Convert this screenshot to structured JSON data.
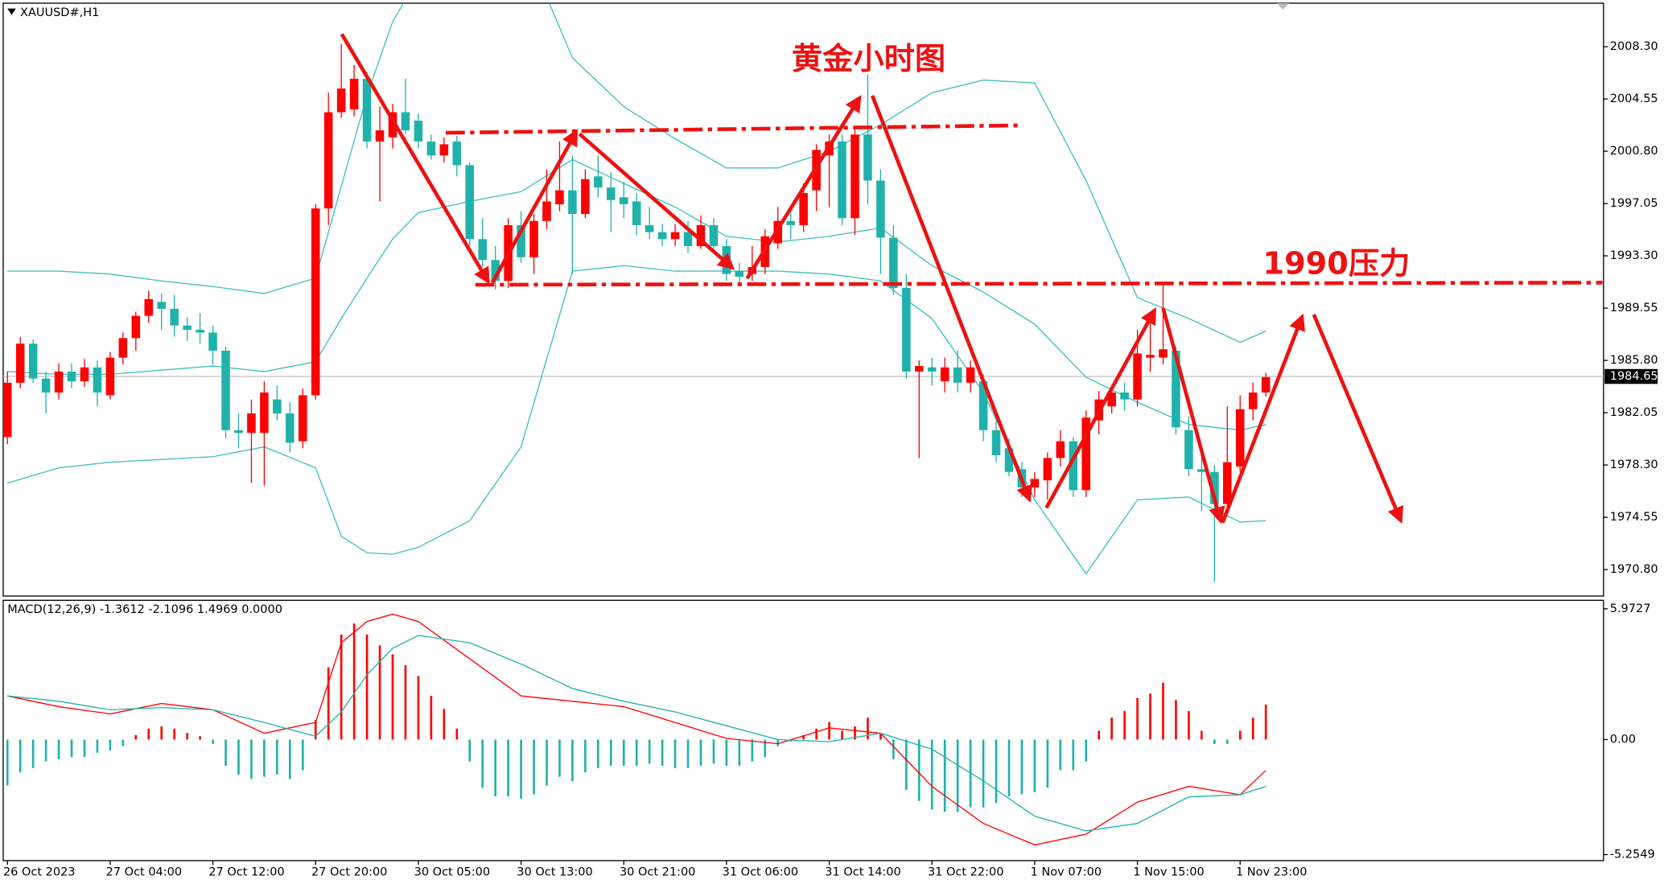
{
  "chart_data": {
    "type": "candlestick",
    "symbol_label": "XAUUSD#,H1",
    "title": "黄金小时图",
    "annotation": "1990压力",
    "up_color": "#ff0000",
    "down_color": "#20b2aa",
    "categories": [
      "26 Oct 2023",
      null,
      null,
      null,
      null,
      null,
      null,
      null,
      "27 Oct 04:00",
      null,
      null,
      null,
      null,
      null,
      null,
      null,
      "27 Oct 12:00",
      null,
      null,
      null,
      null,
      null,
      null,
      null,
      "27 Oct 20:00",
      null,
      null,
      null,
      null,
      null,
      null,
      null,
      "30 Oct 05:00",
      null,
      null,
      null,
      null,
      null,
      null,
      null,
      "30 Oct 13:00",
      null,
      null,
      null,
      null,
      null,
      null,
      null,
      "30 Oct 21:00",
      null,
      null,
      null,
      null,
      null,
      null,
      null,
      "31 Oct 06:00",
      null,
      null,
      null,
      null,
      null,
      null,
      null,
      "31 Oct 14:00",
      null,
      null,
      null,
      null,
      null,
      null,
      null,
      "31 Oct 22:00",
      null,
      null,
      null,
      null,
      null,
      null,
      null,
      "1 Nov 07:00",
      null,
      null,
      null,
      null,
      null,
      null,
      null,
      "1 Nov 15:00",
      null,
      null,
      null,
      null,
      null,
      null,
      null,
      "1 Nov 23:00",
      null,
      null
    ],
    "ohlc": [
      [
        1980.3,
        1985.0,
        1979.8,
        1984.2
      ],
      [
        1984.2,
        1987.5,
        1983.8,
        1987.0
      ],
      [
        1987.0,
        1987.3,
        1984.2,
        1984.5
      ],
      [
        1984.5,
        1985.0,
        1982.0,
        1983.5
      ],
      [
        1983.5,
        1985.6,
        1983.0,
        1985.0
      ],
      [
        1985.0,
        1985.6,
        1983.8,
        1984.3
      ],
      [
        1984.3,
        1985.9,
        1983.9,
        1985.3
      ],
      [
        1985.3,
        1985.8,
        1982.5,
        1983.5
      ],
      [
        1983.3,
        1986.4,
        1983.0,
        1986.0
      ],
      [
        1986.0,
        1987.8,
        1985.5,
        1987.4
      ],
      [
        1987.4,
        1989.3,
        1986.5,
        1989.0
      ],
      [
        1989.0,
        1990.8,
        1988.5,
        1990.2
      ],
      [
        1990.0,
        1990.6,
        1988.0,
        1989.5
      ],
      [
        1989.5,
        1990.5,
        1987.5,
        1988.3
      ],
      [
        1988.3,
        1988.9,
        1987.2,
        1988.0
      ],
      [
        1988.0,
        1989.2,
        1987.0,
        1987.8
      ],
      [
        1987.8,
        1988.3,
        1985.5,
        1986.5
      ],
      [
        1986.5,
        1986.8,
        1980.2,
        1980.8
      ],
      [
        1980.8,
        1982.0,
        1979.5,
        1980.6
      ],
      [
        1980.6,
        1983.0,
        1977.0,
        1982.0
      ],
      [
        1980.6,
        1984.3,
        1976.8,
        1983.5
      ],
      [
        1983.0,
        1984.0,
        1981.5,
        1982.0
      ],
      [
        1982.0,
        1982.8,
        1979.2,
        1979.9
      ],
      [
        1980.0,
        1983.8,
        1979.5,
        1983.3
      ],
      [
        1983.3,
        1997.0,
        1983.0,
        1996.7
      ],
      [
        1996.7,
        2005.0,
        1995.5,
        2003.6
      ],
      [
        2003.6,
        2008.5,
        2003.2,
        2005.3
      ],
      [
        2003.8,
        2007.0,
        2003.3,
        2006.0
      ],
      [
        2006.0,
        2006.5,
        2001.0,
        2001.5
      ],
      [
        2001.5,
        2004.0,
        1997.2,
        2002.3
      ],
      [
        2001.8,
        2004.2,
        2001.0,
        2003.6
      ],
      [
        2003.6,
        2006.0,
        2002.0,
        2002.3
      ],
      [
        2003.0,
        2003.5,
        2001.0,
        2001.5
      ],
      [
        2001.5,
        2002.0,
        2000.2,
        2000.5
      ],
      [
        2000.5,
        2001.8,
        2000.0,
        2001.3
      ],
      [
        2001.5,
        2001.9,
        1999.0,
        1999.8
      ],
      [
        1999.8,
        2000.0,
        1994.0,
        1994.5
      ],
      [
        1994.5,
        1996.0,
        1992.5,
        1993.0
      ],
      [
        1993.0,
        1994.0,
        1990.9,
        1991.5
      ],
      [
        1991.5,
        1996.0,
        1991.0,
        1995.5
      ],
      [
        1995.5,
        1996.5,
        1992.8,
        1993.2
      ],
      [
        1993.2,
        1996.3,
        1992.0,
        1995.8
      ],
      [
        1995.8,
        1999.5,
        1995.2,
        1997.2
      ],
      [
        1997.0,
        2001.5,
        1996.5,
        1998.0
      ],
      [
        1998.0,
        2000.5,
        1992.0,
        1996.3
      ],
      [
        1996.3,
        1999.5,
        1996.0,
        1998.8
      ],
      [
        1999.0,
        2000.5,
        1997.5,
        1998.2
      ],
      [
        1998.2,
        1999.3,
        1995.0,
        1997.3
      ],
      [
        1997.5,
        1998.6,
        1996.0,
        1997.0
      ],
      [
        1997.2,
        1997.8,
        1994.8,
        1995.5
      ],
      [
        1995.5,
        1996.8,
        1994.5,
        1995.0
      ],
      [
        1995.0,
        1995.6,
        1994.0,
        1994.5
      ],
      [
        1994.5,
        1995.6,
        1994.0,
        1995.0
      ],
      [
        1995.0,
        1995.8,
        1993.5,
        1994.0
      ],
      [
        1994.0,
        1996.2,
        1993.8,
        1995.5
      ],
      [
        1995.5,
        1996.0,
        1993.5,
        1994.0
      ],
      [
        1994.0,
        1994.5,
        1991.5,
        1992.0
      ],
      [
        1992.2,
        1992.8,
        1991.2,
        1991.8
      ],
      [
        1992.0,
        1994.0,
        1991.5,
        1992.5
      ],
      [
        1992.5,
        1995.2,
        1992.0,
        1994.7
      ],
      [
        1994.2,
        1996.8,
        1993.8,
        1995.8
      ],
      [
        1995.8,
        1996.5,
        1994.5,
        1995.5
      ],
      [
        1995.5,
        1998.5,
        1995.0,
        1997.8
      ],
      [
        1998.0,
        2001.3,
        1996.5,
        2000.9
      ],
      [
        2000.5,
        2002.0,
        1996.8,
        2001.5
      ],
      [
        2001.5,
        2002.0,
        1995.5,
        1996.0
      ],
      [
        1996.0,
        2002.5,
        1994.8,
        2002.0
      ],
      [
        2002.0,
        2006.3,
        1997.0,
        1998.7
      ],
      [
        1998.7,
        1999.5,
        1992.0,
        1994.6
      ],
      [
        1994.6,
        1995.5,
        1990.5,
        1991.0
      ],
      [
        1991.0,
        1992.0,
        1984.5,
        1985.0
      ],
      [
        1985.0,
        1985.8,
        1978.8,
        1985.4
      ],
      [
        1985.3,
        1986.0,
        1984.0,
        1985.0
      ],
      [
        1984.3,
        1986.0,
        1983.5,
        1985.3
      ],
      [
        1985.3,
        1986.5,
        1983.5,
        1984.2
      ],
      [
        1984.2,
        1985.8,
        1983.5,
        1985.3
      ],
      [
        1984.3,
        1984.8,
        1980.0,
        1980.8
      ],
      [
        1980.8,
        1981.5,
        1978.5,
        1979.0
      ],
      [
        1979.5,
        1980.2,
        1977.5,
        1977.8
      ],
      [
        1978.0,
        1978.5,
        1976.0,
        1976.7
      ],
      [
        1976.7,
        1977.8,
        1976.0,
        1977.3
      ],
      [
        1977.2,
        1979.2,
        1975.8,
        1978.8
      ],
      [
        1978.8,
        1980.8,
        1978.2,
        1980.0
      ],
      [
        1980.0,
        1980.3,
        1976.0,
        1976.5
      ],
      [
        1976.5,
        1982.2,
        1976.0,
        1981.7
      ],
      [
        1981.5,
        1983.6,
        1980.5,
        1983.0
      ],
      [
        1982.5,
        1984.0,
        1982.0,
        1983.5
      ],
      [
        1983.5,
        1984.2,
        1982.2,
        1983.0
      ],
      [
        1983.0,
        1988.0,
        1982.5,
        1986.3
      ],
      [
        1986.0,
        1989.0,
        1985.0,
        1986.2
      ],
      [
        1986.0,
        1991.3,
        1985.5,
        1986.6
      ],
      [
        1986.5,
        1986.8,
        1980.5,
        1981.0
      ],
      [
        1980.8,
        1981.8,
        1977.5,
        1978.0
      ],
      [
        1978.0,
        1979.0,
        1975.0,
        1977.8
      ],
      [
        1977.8,
        1978.3,
        1969.9,
        1975.5
      ],
      [
        1975.5,
        1982.5,
        1975.0,
        1978.5
      ],
      [
        1978.2,
        1983.3,
        1977.8,
        1982.3
      ],
      [
        1982.3,
        1984.2,
        1981.5,
        1983.5
      ],
      [
        1983.5,
        1984.9,
        1983.2,
        1984.6
      ]
    ],
    "ylim": [
      1968.9,
      2011.42
    ],
    "yticks": [
      {
        "value": 2008.3,
        "label": "2008.30"
      },
      2004.55,
      {
        "value": 2000.8,
        "label": "2000.80"
      },
      1997.05,
      {
        "value": 1993.3,
        "label": "1993.30"
      },
      1989.55,
      {
        "value": 1985.8,
        "label": "1985.80"
      },
      1982.05,
      {
        "value": 1978.3,
        "label": "1978.30"
      },
      1974.55,
      {
        "value": 1970.8,
        "label": "1970.80"
      }
    ],
    "last_price": 1984.65,
    "bands": {
      "color": "#3fbfbf",
      "x": [
        0,
        4,
        8,
        12,
        16,
        20,
        24,
        26,
        28,
        30,
        32,
        36,
        40,
        44,
        48,
        52,
        56,
        60,
        64,
        68,
        72,
        76,
        80,
        84,
        88,
        92,
        96,
        98
      ],
      "upper": [
        1992.2,
        1992.2,
        1992.0,
        1991.5,
        1991.1,
        1990.6,
        1991.7,
        1998.3,
        2004.8,
        2010.1,
        2013.2,
        2017.0,
        2016.2,
        2007.5,
        2004.0,
        2001.7,
        1999.6,
        1999.6,
        2000.8,
        2002.7,
        2005.0,
        2005.9,
        2005.7,
        1998.7,
        1990.3,
        1988.8,
        1987.1,
        1987.9
      ],
      "middle": [
        1985.0,
        1984.8,
        1984.8,
        1985.1,
        1985.4,
        1985.0,
        1985.7,
        1988.8,
        1991.7,
        1994.5,
        1996.4,
        1997.2,
        1997.9,
        2000.2,
        1998.5,
        1996.8,
        1994.7,
        1994.3,
        1994.7,
        1995.3,
        1992.6,
        1990.7,
        1988.4,
        1984.6,
        1982.8,
        1981.2,
        1980.8,
        1981.2
      ],
      "lower": [
        1977.0,
        1978.1,
        1978.5,
        1978.7,
        1978.9,
        1979.6,
        1978.1,
        1973.2,
        1972.0,
        1971.9,
        1972.4,
        1974.3,
        1979.6,
        1992.2,
        1992.6,
        1992.2,
        1992.2,
        1992.2,
        1992.0,
        1991.5,
        1988.8,
        1983.5,
        1975.8,
        1970.5,
        1975.8,
        1976.0,
        1974.2,
        1974.3
      ]
    },
    "macd": {
      "label": "MACD(12,26,9) -1.3612 -2.1096 1.4969 0.0000",
      "macd_color": "#ff0000",
      "signal_color": "#20b2aa",
      "ylim": [
        -5.53,
        6.36
      ],
      "yticks": [
        5.9727,
        {
          "value": 0,
          "label": "0.00"
        },
        -5.2549
      ],
      "histogram": [
        -2.1,
        -1.5,
        -1.3,
        -1.0,
        -0.9,
        -0.8,
        -0.8,
        -0.6,
        -0.5,
        -0.3,
        0.2,
        0.5,
        0.6,
        0.5,
        0.3,
        0.15,
        -0.2,
        -1.2,
        -1.6,
        -1.8,
        -1.7,
        -1.6,
        -1.8,
        -1.4,
        0.9,
        3.3,
        4.8,
        5.3,
        4.8,
        4.3,
        3.9,
        3.4,
        2.9,
        2.0,
        1.4,
        0.5,
        -1.0,
        -2.2,
        -2.6,
        -2.6,
        -2.7,
        -2.5,
        -2.1,
        -1.7,
        -1.9,
        -1.5,
        -1.3,
        -1.2,
        -1.2,
        -1.2,
        -1.1,
        -1.2,
        -1.3,
        -1.3,
        -1.2,
        -1.1,
        -1.2,
        -1.2,
        -1.0,
        -0.8,
        -0.3,
        -0.1,
        0.2,
        0.5,
        0.8,
        0.4,
        0.6,
        1.0,
        0.3,
        -0.9,
        -2.3,
        -2.8,
        -3.2,
        -3.3,
        -3.3,
        -3.1,
        -3.1,
        -2.9,
        -2.6,
        -2.5,
        -2.4,
        -2.2,
        -1.4,
        -1.4,
        -1.0,
        0.4,
        1.0,
        1.3,
        1.9,
        2.1,
        2.6,
        1.8,
        1.3,
        0.4,
        -0.2,
        -0.2,
        0.4,
        1.0,
        1.6
      ],
      "x": [
        0,
        4,
        8,
        12,
        16,
        20,
        24,
        26,
        28,
        30,
        32,
        36,
        40,
        44,
        48,
        52,
        56,
        60,
        64,
        68,
        72,
        76,
        80,
        84,
        88,
        92,
        96,
        98
      ],
      "macd": [
        1.99,
        1.5,
        1.17,
        1.65,
        1.36,
        0.29,
        0.78,
        4.42,
        5.39,
        5.73,
        5.39,
        3.69,
        1.99,
        1.75,
        1.5,
        0.78,
        0.05,
        -0.19,
        0.53,
        0.29,
        -2.14,
        -3.83,
        -4.81,
        -4.32,
        -2.86,
        -2.14,
        -2.52,
        -1.41
      ],
      "signal": [
        1.99,
        1.75,
        1.36,
        1.46,
        1.36,
        0.78,
        0.15,
        1.26,
        2.96,
        4.17,
        4.76,
        4.42,
        3.45,
        2.33,
        1.75,
        1.26,
        0.63,
        0,
        -0.1,
        0.29,
        -0.44,
        -1.89,
        -3.5,
        -4.17,
        -3.83,
        -2.62,
        -2.52,
        -2.14
      ]
    }
  }
}
